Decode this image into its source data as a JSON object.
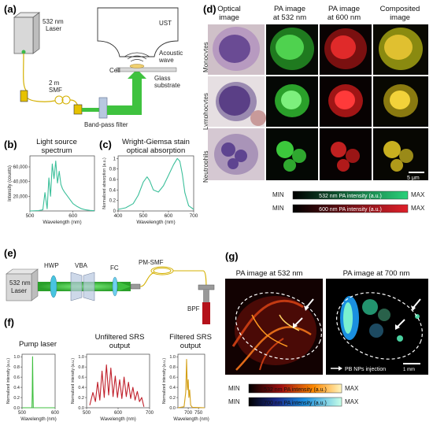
{
  "figure": {
    "panel_labels": [
      "(a)",
      "(b)",
      "(c)",
      "(d)",
      "(e)",
      "(f)",
      "(g)"
    ],
    "a": {
      "laser": "532 nm\nLaser",
      "fiber": "2 m\nSMF",
      "bpf": "Band-pass filter",
      "ust": "UST",
      "acoustic": "Acoustic\nwave",
      "cell": "Cell",
      "glass": "Glass\nsubstrate"
    },
    "b": {
      "title": "Light source\nspectrum"
    },
    "c": {
      "title": "Wright-Giemsa stain\noptical absorption"
    },
    "d": {
      "col_headers": [
        "Optical\nimage",
        "PA image\nat 532 nm",
        "PA image\nat 600 nm",
        "Composited\nimage"
      ],
      "row_labels": [
        "Monocytes",
        "Lymphocytes",
        "Neutrophils"
      ],
      "scalebar": "5 μm",
      "colorbars": [
        {
          "min": "MIN",
          "label": "532 nm PA intensity (a.u.)",
          "max": "MAX"
        },
        {
          "min": "MIN",
          "label": "600 nm PA intensity (a.u.)",
          "max": "MAX"
        }
      ]
    },
    "e": {
      "laser": "532 nm\nLaser",
      "hwp": "HWP",
      "vba": "VBA",
      "fc": "FC",
      "pmsmf": "PM-SMF",
      "bpf": "BPF"
    },
    "f": {
      "titles": [
        "Pump laser",
        "Unfiltered SRS\noutput",
        "Filtered SRS\noutput"
      ]
    },
    "g": {
      "titles": [
        "PA image at 532 nm",
        "PA image at 700 nm"
      ],
      "injection": "PB NPs injection",
      "scalebar": "1 mm",
      "colorbars": [
        {
          "min": "MIN",
          "label": "532 nm PA intensity (a.u.)",
          "max": "MAX"
        },
        {
          "min": "MIN",
          "label": "700 nm PA intensity (a.u.)",
          "max": "MAX"
        }
      ]
    }
  },
  "chart_data": [
    {
      "type": "line",
      "id": "b",
      "title": "Light source\nspectrum",
      "xlabel": "Wavelength (nm)",
      "ylabel": "Intensity (counts)",
      "xlim": [
        500,
        650
      ],
      "ylim": [
        0,
        75000
      ],
      "xticks": [
        500,
        600
      ],
      "yticks": [
        20000,
        40000,
        60000
      ],
      "ytick_labels": [
        "20,000",
        "40,000",
        "60,000"
      ],
      "color": "#3bbf9a",
      "x": [
        500,
        520,
        530,
        535,
        540,
        544,
        548,
        552,
        556,
        560,
        564,
        568,
        572,
        576,
        580,
        590,
        600,
        610,
        620,
        630,
        640,
        650
      ],
      "y": [
        0,
        500,
        1500,
        25000,
        3000,
        45000,
        20000,
        64000,
        44000,
        68000,
        38000,
        54000,
        36000,
        30000,
        26000,
        18000,
        10000,
        6000,
        3000,
        1500,
        700,
        300
      ]
    },
    {
      "type": "line",
      "id": "c",
      "title": "Wright-Giemsa stain\noptical absorption",
      "xlabel": "Wavelength (nm)",
      "ylabel": "Normalized absorption (a.u.)",
      "xlim": [
        400,
        700
      ],
      "ylim": [
        0,
        1.05
      ],
      "xticks": [
        400,
        500,
        600,
        700
      ],
      "yticks": [
        0,
        0.2,
        0.4,
        0.6,
        0.8,
        1
      ],
      "ytick_labels": [
        "0",
        "0.2",
        "0.4",
        "0.6",
        "0.8",
        "1"
      ],
      "color": "#3bbf9a",
      "x": [
        400,
        430,
        460,
        480,
        500,
        515,
        525,
        540,
        560,
        580,
        600,
        620,
        635,
        645,
        655,
        665,
        680,
        700
      ],
      "y": [
        0.03,
        0.06,
        0.14,
        0.3,
        0.55,
        0.65,
        0.58,
        0.4,
        0.36,
        0.48,
        0.68,
        0.88,
        1.0,
        0.95,
        0.7,
        0.35,
        0.1,
        0.03
      ]
    },
    {
      "type": "line",
      "id": "f-pump",
      "title": "Pump laser",
      "xlabel": "Wavelength (nm)",
      "ylabel": "Normalized intensity (a.u.)",
      "xlim": [
        500,
        600
      ],
      "ylim": [
        0,
        1.05
      ],
      "xticks": [
        500,
        600
      ],
      "yticks": [
        0,
        0.2,
        0.4,
        0.6,
        0.8,
        1
      ],
      "ytick_labels": [
        "0.0",
        "0.2",
        "0.4",
        "0.6",
        "0.8",
        "1.0"
      ],
      "color": "#3fbf3f",
      "x": [
        500,
        530,
        531,
        532,
        533,
        534,
        600
      ],
      "y": [
        0,
        0,
        0.3,
        1.0,
        0.3,
        0,
        0
      ]
    },
    {
      "type": "line",
      "id": "f-unfiltered",
      "title": "Unfiltered SRS\noutput",
      "xlabel": "Wavelength (nm)",
      "ylabel": "Normalized intensity (a.u.)",
      "xlim": [
        500,
        700
      ],
      "ylim": [
        0,
        1.05
      ],
      "xticks": [
        500,
        600,
        700
      ],
      "yticks": [
        0,
        0.2,
        0.4,
        0.6,
        0.8,
        1
      ],
      "ytick_labels": [
        "0.0",
        "0.2",
        "0.4",
        "0.6",
        "0.8",
        "1.0"
      ],
      "color": "#c0202b",
      "x": [
        510,
        520,
        528,
        535,
        542,
        549,
        556,
        563,
        570,
        577,
        584,
        591,
        598,
        605,
        612,
        619,
        626,
        633,
        640,
        647,
        654,
        661,
        668,
        675,
        682
      ],
      "y": [
        0.05,
        0.3,
        0.12,
        0.5,
        0.15,
        0.72,
        0.2,
        0.84,
        0.25,
        0.78,
        0.22,
        0.62,
        0.2,
        0.55,
        0.18,
        0.6,
        0.22,
        0.5,
        0.18,
        0.4,
        0.15,
        0.32,
        0.12,
        0.2,
        0.02
      ]
    },
    {
      "type": "line",
      "id": "f-filtered",
      "title": "Filtered SRS\noutput",
      "xlabel": "Wavelength (nm)",
      "ylabel": "Normalized intensity (a.u.)",
      "xlim": [
        650,
        780
      ],
      "ylim": [
        0,
        1.05
      ],
      "xticks": [
        700,
        750
      ],
      "yticks": [
        0,
        0.2,
        0.4,
        0.6,
        0.8,
        1
      ],
      "ytick_labels": [
        "0.0",
        "0.2",
        "0.4",
        "0.6",
        "0.8",
        "1.0"
      ],
      "color": "#d4a017",
      "x": [
        650,
        680,
        688,
        692,
        696,
        700,
        703,
        707,
        712,
        720,
        780
      ],
      "y": [
        0,
        0.02,
        0.3,
        0.95,
        0.35,
        0.55,
        0.2,
        0.35,
        0.05,
        0.01,
        0
      ]
    }
  ]
}
